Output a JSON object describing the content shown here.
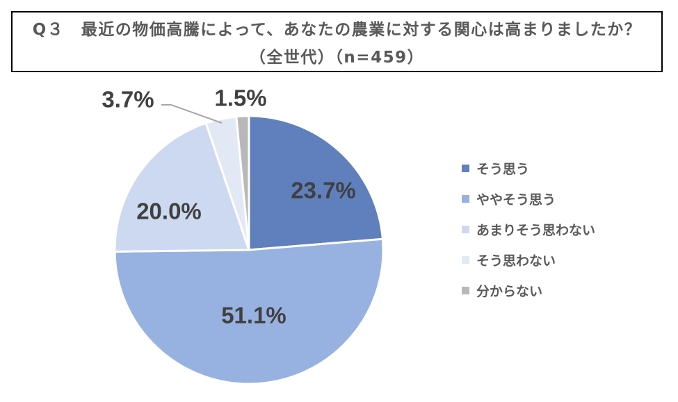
{
  "chart_data": {
    "type": "pie",
    "title": "Q３　最近の物価高騰によって、あなたの農業に対する関心は高まりましたか？",
    "subtitle": "（全世代）（n=459）",
    "slices": [
      {
        "name": "そう思う",
        "value": 23.7,
        "label": "23.7%",
        "color": "#5f80bd"
      },
      {
        "name": "ややそう思う",
        "value": 51.1,
        "label": "51.1%",
        "color": "#97b2e0"
      },
      {
        "name": "あまりそう思わない",
        "value": 20.0,
        "label": "20.0%",
        "color": "#ccd9f0"
      },
      {
        "name": "そう思わない",
        "value": 3.7,
        "label": "3.7%",
        "color": "#e3e9f4"
      },
      {
        "name": "分からない",
        "value": 1.5,
        "label": "1.5%",
        "color": "#b8b8b8"
      }
    ],
    "start": "12 o'clock",
    "direction": "clockwise",
    "legend_position": "right"
  }
}
